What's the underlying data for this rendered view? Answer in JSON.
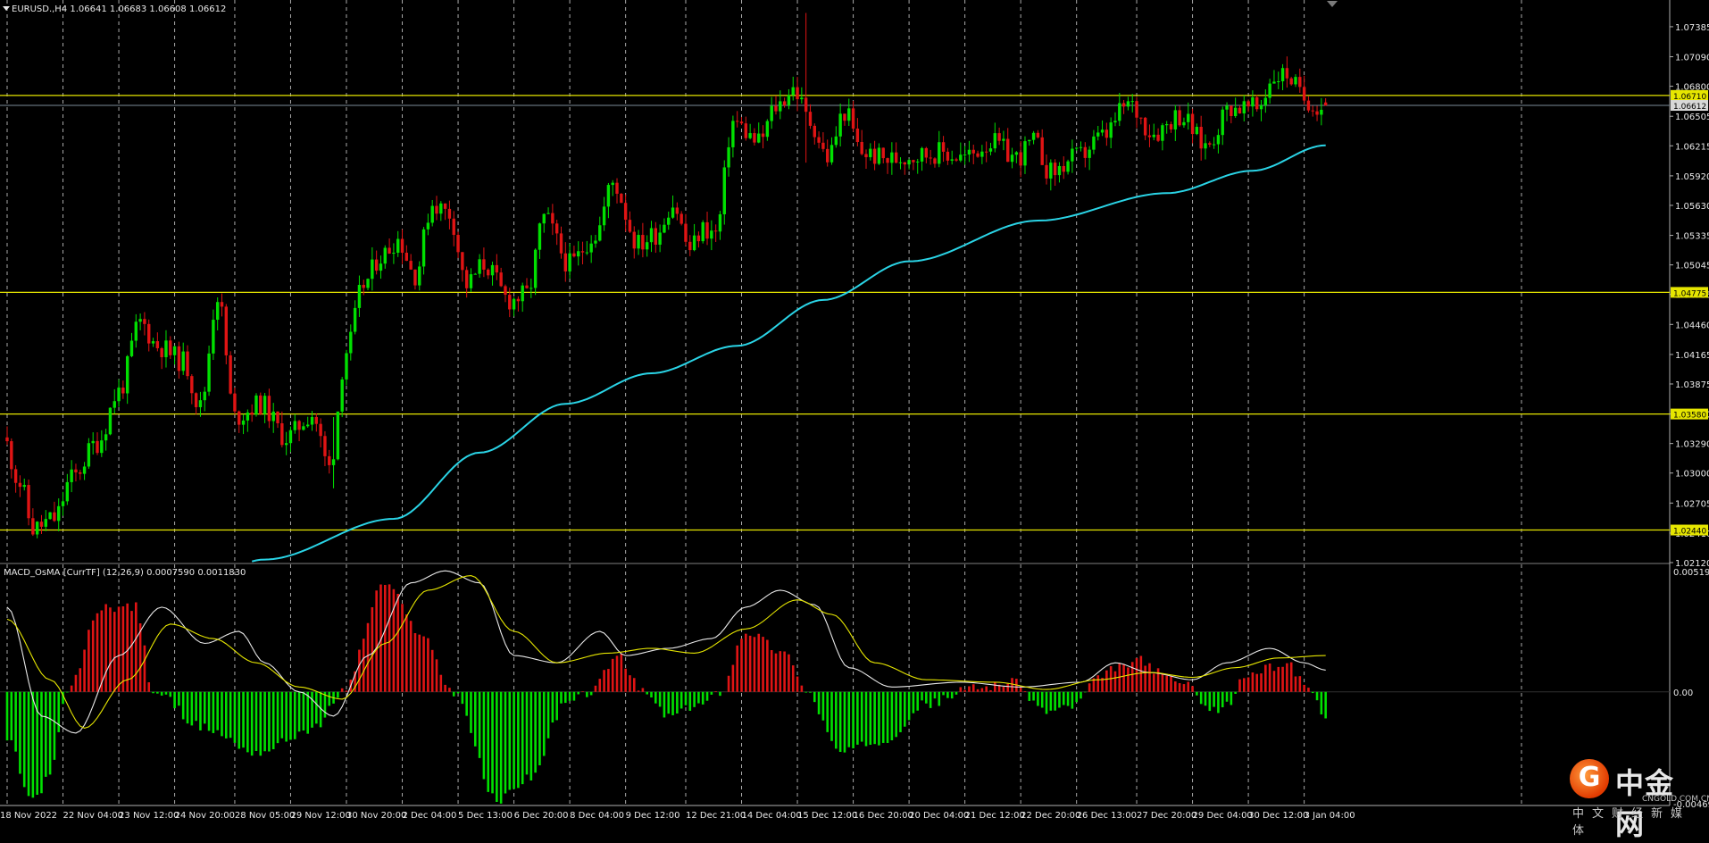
{
  "window": {
    "symbol_header": "EURUSD.,H4  1.06641 1.06683 1.06608 1.06612",
    "indicator_header": "MACD_OsMA [CurrTF] (12,26,9) 0.0007590 0.0011830"
  },
  "colors": {
    "background": "#000000",
    "grid": "#c8c8c8",
    "bull_candle": "#00e000",
    "bear_candle": "#e01414",
    "moving_average": "#2ad4e6",
    "horizontal_levels": "#e6e600",
    "current_price_line": "#7d8c99",
    "macd_positive": "#e01414",
    "macd_negative": "#00e000",
    "macd_line": "#e8e8e8",
    "signal_line": "#e6e600",
    "axis_text": "#e8e8e8"
  },
  "price_axis": {
    "ticks": [
      "1.07385",
      "1.07090",
      "1.06800",
      "1.06505",
      "1.06215",
      "1.05920",
      "1.05630",
      "1.05335",
      "1.05045",
      "1.04755",
      "1.04460",
      "1.04165",
      "1.03875",
      "1.03580",
      "1.03290",
      "1.03000",
      "1.02705",
      "1.02410",
      "1.02120"
    ],
    "level_labels": [
      "1.06710",
      "1.04775",
      "1.03580",
      "1.02440"
    ],
    "current_price_label": "1.06612"
  },
  "indicator_axis": {
    "ticks": [
      "0.0051913",
      "0.00",
      "-0.004692"
    ]
  },
  "time_axis": {
    "labels": [
      "18 Nov 2022",
      "22 Nov 04:00",
      "23 Nov 12:00",
      "24 Nov 20:00",
      "28 Nov 05:00",
      "29 Nov 12:00",
      "30 Nov 20:00",
      "2 Dec 04:00",
      "5 Dec 13:00",
      "6 Dec 20:00",
      "8 Dec 04:00",
      "9 Dec 12:00",
      "12 Dec 21:00",
      "14 Dec 04:00",
      "15 Dec 12:00",
      "16 Dec 20:00",
      "20 Dec 04:00",
      "21 Dec 12:00",
      "22 Dec 20:00",
      "26 Dec 13:00",
      "27 Dec 20:00",
      "29 Dec 04:00",
      "30 Dec 12:00",
      "3 Jan 04:00"
    ]
  },
  "chart_data": {
    "type": "candlestick",
    "symbol": "EURUSD",
    "timeframe": "H4",
    "last_bar": {
      "open": 1.06641,
      "high": 1.06683,
      "low": 1.06608,
      "close": 1.06612
    },
    "horizontal_levels": [
      1.0671,
      1.04775,
      1.0358,
      1.0244
    ],
    "price_range": [
      1.0212,
      1.0763
    ],
    "indicator": {
      "name": "MACD_OsMA",
      "params": [
        12,
        26,
        9
      ],
      "values": [
        0.000759,
        0.001183
      ],
      "range": [
        -0.004692,
        0.0051913
      ]
    },
    "waypoints": [
      [
        0,
        1.0335
      ],
      [
        4,
        1.029
      ],
      [
        7,
        1.0245
      ],
      [
        12,
        1.0255
      ],
      [
        16,
        1.0295
      ],
      [
        22,
        1.033
      ],
      [
        27,
        1.038
      ],
      [
        32,
        1.0448
      ],
      [
        36,
        1.0425
      ],
      [
        42,
        1.041
      ],
      [
        46,
        1.0365
      ],
      [
        50,
        1.0475
      ],
      [
        54,
        1.0355
      ],
      [
        60,
        1.0368
      ],
      [
        66,
        1.0335
      ],
      [
        72,
        1.0358
      ],
      [
        76,
        1.0305
      ],
      [
        80,
        1.042
      ],
      [
        84,
        1.0485
      ],
      [
        88,
        1.0513
      ],
      [
        92,
        1.053
      ],
      [
        96,
        1.0495
      ],
      [
        100,
        1.0565
      ],
      [
        104,
        1.0555
      ],
      [
        108,
        1.0485
      ],
      [
        112,
        1.0505
      ],
      [
        118,
        1.047
      ],
      [
        122,
        1.0475
      ],
      [
        126,
        1.055
      ],
      [
        132,
        1.0505
      ],
      [
        138,
        1.0535
      ],
      [
        142,
        1.0585
      ],
      [
        148,
        1.0525
      ],
      [
        152,
        1.0535
      ],
      [
        156,
        1.0565
      ],
      [
        160,
        1.052
      ],
      [
        163,
        1.054
      ],
      [
        166,
        1.0535
      ],
      [
        170,
        1.0645
      ],
      [
        176,
        1.0625
      ],
      [
        180,
        1.066
      ],
      [
        184,
        1.0678
      ],
      [
        188,
        1.0645
      ],
      [
        192,
        1.061
      ],
      [
        196,
        1.0655
      ],
      [
        200,
        1.0615
      ],
      [
        206,
        1.0608
      ],
      [
        212,
        1.0612
      ],
      [
        218,
        1.0615
      ],
      [
        224,
        1.061
      ],
      [
        230,
        1.0625
      ],
      [
        236,
        1.061
      ],
      [
        240,
        1.0625
      ],
      [
        244,
        1.0595
      ],
      [
        250,
        1.061
      ],
      [
        256,
        1.063
      ],
      [
        262,
        1.0662
      ],
      [
        268,
        1.0635
      ],
      [
        274,
        1.0652
      ],
      [
        280,
        1.0622
      ],
      [
        286,
        1.066
      ],
      [
        292,
        1.0658
      ],
      [
        296,
        1.069
      ],
      [
        299,
        1.0692
      ],
      [
        303,
        1.0668
      ],
      [
        307,
        1.066
      ]
    ],
    "moving_average_waypoints": [
      [
        0,
        1.01
      ],
      [
        30,
        1.015
      ],
      [
        60,
        1.0215
      ],
      [
        90,
        1.0255
      ],
      [
        110,
        1.032
      ],
      [
        130,
        1.0368
      ],
      [
        150,
        1.0398
      ],
      [
        170,
        1.0425
      ],
      [
        190,
        1.047
      ],
      [
        210,
        1.0508
      ],
      [
        240,
        1.0548
      ],
      [
        270,
        1.0575
      ],
      [
        290,
        1.0597
      ],
      [
        307,
        1.0622
      ]
    ],
    "macd_histogram_waypoints": [
      [
        0,
        -0.002
      ],
      [
        6,
        -0.0045
      ],
      [
        10,
        -0.0035
      ],
      [
        14,
        0.0
      ],
      [
        22,
        0.0035
      ],
      [
        30,
        0.0035
      ],
      [
        34,
        0.0
      ],
      [
        46,
        -0.0015
      ],
      [
        58,
        -0.0025
      ],
      [
        72,
        -0.0015
      ],
      [
        78,
        0.0
      ],
      [
        88,
        0.0045
      ],
      [
        96,
        0.0025
      ],
      [
        104,
        0.0
      ],
      [
        114,
        -0.0045
      ],
      [
        122,
        -0.0035
      ],
      [
        130,
        -0.0005
      ],
      [
        136,
        0.0
      ],
      [
        142,
        0.0015
      ],
      [
        148,
        0.0
      ],
      [
        154,
        -0.001
      ],
      [
        162,
        -0.0005
      ],
      [
        166,
        0.0
      ],
      [
        172,
        0.0025
      ],
      [
        182,
        0.0015
      ],
      [
        186,
        0.0
      ],
      [
        194,
        -0.0025
      ],
      [
        204,
        -0.002
      ],
      [
        214,
        -0.0005
      ],
      [
        226,
        0.0002
      ],
      [
        234,
        0.0004
      ],
      [
        242,
        -0.0008
      ],
      [
        248,
        -0.0006
      ],
      [
        254,
        0.0005
      ],
      [
        258,
        0.001
      ],
      [
        264,
        0.0013
      ],
      [
        270,
        0.0006
      ],
      [
        276,
        0.0002
      ],
      [
        280,
        -0.0008
      ],
      [
        284,
        -0.0006
      ],
      [
        288,
        0.0006
      ],
      [
        292,
        0.0009
      ],
      [
        298,
        0.0012
      ],
      [
        302,
        0.0004
      ],
      [
        307,
        -0.0009
      ]
    ],
    "macd_line_waypoints": [
      [
        0,
        0.0035
      ],
      [
        8,
        -0.001
      ],
      [
        16,
        -0.0017
      ],
      [
        26,
        0.0015
      ],
      [
        36,
        0.0035
      ],
      [
        46,
        0.002
      ],
      [
        54,
        0.0025
      ],
      [
        60,
        0.0012
      ],
      [
        68,
        0.0
      ],
      [
        76,
        -0.001
      ],
      [
        84,
        0.0015
      ],
      [
        94,
        0.0045
      ],
      [
        102,
        0.005
      ],
      [
        110,
        0.0045
      ],
      [
        118,
        0.0015
      ],
      [
        128,
        0.0012
      ],
      [
        138,
        0.0025
      ],
      [
        144,
        0.0015
      ],
      [
        154,
        0.0018
      ],
      [
        164,
        0.0022
      ],
      [
        172,
        0.0035
      ],
      [
        180,
        0.0042
      ],
      [
        188,
        0.0036
      ],
      [
        196,
        0.001
      ],
      [
        206,
        0.0002
      ],
      [
        222,
        0.0004
      ],
      [
        236,
        0.0002
      ],
      [
        250,
        0.0004
      ],
      [
        258,
        0.0012
      ],
      [
        266,
        0.0008
      ],
      [
        276,
        0.0005
      ],
      [
        284,
        0.0012
      ],
      [
        294,
        0.0018
      ],
      [
        302,
        0.0012
      ],
      [
        307,
        0.0009
      ]
    ],
    "signal_line_waypoints": [
      [
        0,
        0.003
      ],
      [
        10,
        0.0005
      ],
      [
        18,
        -0.0015
      ],
      [
        28,
        0.0005
      ],
      [
        38,
        0.0028
      ],
      [
        48,
        0.0022
      ],
      [
        58,
        0.0012
      ],
      [
        68,
        0.0002
      ],
      [
        78,
        -0.0003
      ],
      [
        88,
        0.002
      ],
      [
        98,
        0.0042
      ],
      [
        108,
        0.0048
      ],
      [
        118,
        0.0025
      ],
      [
        128,
        0.0012
      ],
      [
        140,
        0.0016
      ],
      [
        150,
        0.0018
      ],
      [
        160,
        0.0016
      ],
      [
        172,
        0.0026
      ],
      [
        184,
        0.0038
      ],
      [
        192,
        0.0032
      ],
      [
        202,
        0.0012
      ],
      [
        214,
        0.0005
      ],
      [
        230,
        0.0004
      ],
      [
        242,
        0.0001
      ],
      [
        254,
        0.0005
      ],
      [
        266,
        0.0008
      ],
      [
        276,
        0.0006
      ],
      [
        286,
        0.001
      ],
      [
        296,
        0.0014
      ],
      [
        307,
        0.0015
      ]
    ],
    "large_wick_bars": [
      {
        "index": 186,
        "high": 1.0752,
        "low": 1.0605
      },
      {
        "index": 76,
        "high": 1.0355,
        "low": 1.0285
      }
    ]
  }
}
